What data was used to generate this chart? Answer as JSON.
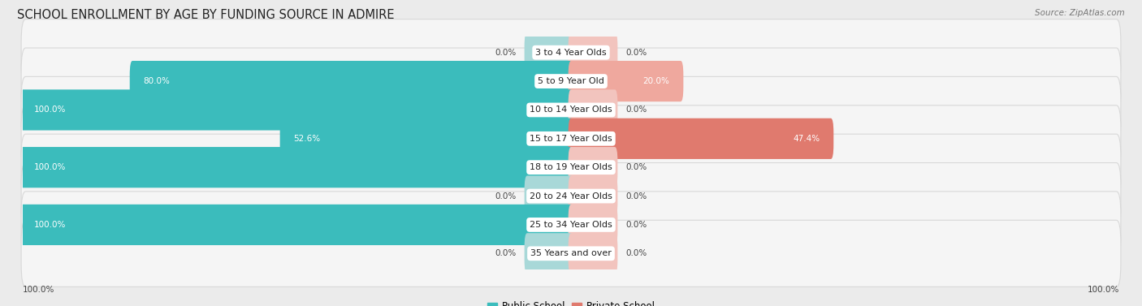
{
  "title": "SCHOOL ENROLLMENT BY AGE BY FUNDING SOURCE IN ADMIRE",
  "source": "Source: ZipAtlas.com",
  "categories": [
    "3 to 4 Year Olds",
    "5 to 9 Year Old",
    "10 to 14 Year Olds",
    "15 to 17 Year Olds",
    "18 to 19 Year Olds",
    "20 to 24 Year Olds",
    "25 to 34 Year Olds",
    "35 Years and over"
  ],
  "public_values": [
    0.0,
    80.0,
    100.0,
    52.6,
    100.0,
    0.0,
    100.0,
    0.0
  ],
  "private_values": [
    0.0,
    20.0,
    0.0,
    47.4,
    0.0,
    0.0,
    0.0,
    0.0
  ],
  "public_color_full": "#3BBCBC",
  "public_color_mid": "#3BBCBC",
  "public_color_light": "#A8D8D8",
  "private_color_full": "#E07A6E",
  "private_color_mid": "#EFA89E",
  "private_color_light": "#F2C4BE",
  "bg_color": "#EBEBEB",
  "row_bg_color": "#F5F5F5",
  "row_border_color": "#D8D8D8",
  "label_bg_color": "#FFFFFF",
  "title_fontsize": 10.5,
  "label_fontsize": 8,
  "value_fontsize": 7.5,
  "legend_fontsize": 8.5,
  "source_fontsize": 7.5
}
